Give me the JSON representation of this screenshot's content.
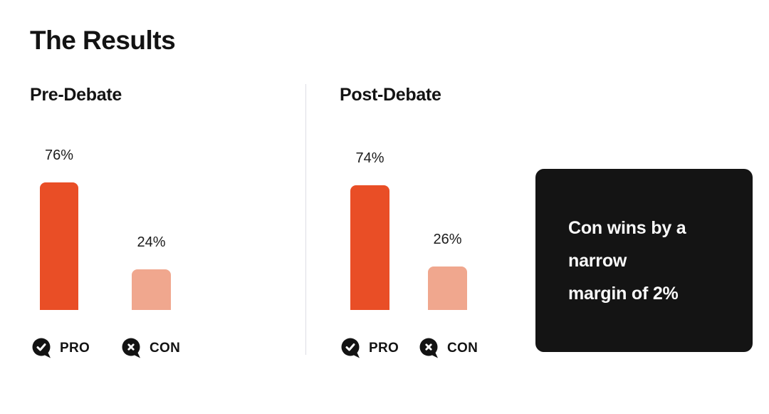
{
  "page": {
    "title": "The Results"
  },
  "charts": [
    {
      "title": "Pre-Debate",
      "bars": [
        {
          "name": "PRO",
          "value": 76,
          "label": "76%"
        },
        {
          "name": "CON",
          "value": 24,
          "label": "24%"
        }
      ],
      "legend": [
        {
          "label": "PRO",
          "icon": "check-bubble-icon"
        },
        {
          "label": "CON",
          "icon": "x-bubble-icon"
        }
      ]
    },
    {
      "title": "Post-Debate",
      "bars": [
        {
          "name": "PRO",
          "value": 74,
          "label": "74%"
        },
        {
          "name": "CON",
          "value": 26,
          "label": "26%"
        }
      ],
      "legend": [
        {
          "label": "PRO",
          "icon": "check-bubble-icon"
        },
        {
          "label": "CON",
          "icon": "x-bubble-icon"
        }
      ]
    }
  ],
  "callout": {
    "lines": [
      "Con wins by a",
      "narrow",
      "margin of 2%"
    ]
  },
  "colors": {
    "pro_bar": "#E94E26",
    "con_bar": "#F0A78E",
    "callout_bg": "#141414",
    "callout_text": "#FAFAFA",
    "text": "#131313",
    "divider": "#DDDDE4",
    "legend_icon": "#131313"
  },
  "chart_data": [
    {
      "type": "bar",
      "title": "Pre-Debate",
      "categories": [
        "PRO",
        "CON"
      ],
      "values": [
        76,
        24
      ],
      "data_labels": [
        "76%",
        "24%"
      ],
      "unit": "%",
      "ylim": [
        0,
        100
      ],
      "grid": false,
      "legend_position": "bottom",
      "bar_colors": [
        "#E94E26",
        "#F0A78E"
      ]
    },
    {
      "type": "bar",
      "title": "Post-Debate",
      "categories": [
        "PRO",
        "CON"
      ],
      "values": [
        74,
        26
      ],
      "data_labels": [
        "74%",
        "26%"
      ],
      "unit": "%",
      "ylim": [
        0,
        100
      ],
      "grid": false,
      "legend_position": "bottom",
      "bar_colors": [
        "#E94E26",
        "#F0A78E"
      ]
    }
  ]
}
